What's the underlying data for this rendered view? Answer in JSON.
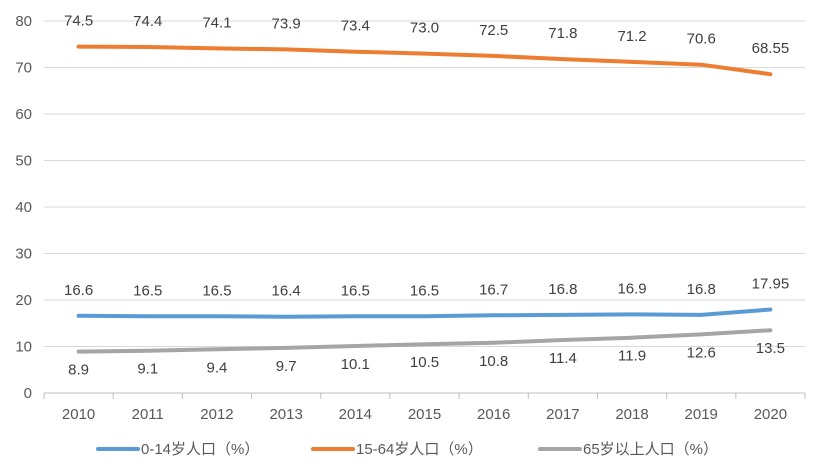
{
  "chart_data": {
    "type": "line",
    "categories": [
      "2010",
      "2011",
      "2012",
      "2013",
      "2014",
      "2015",
      "2016",
      "2017",
      "2018",
      "2019",
      "2020"
    ],
    "ylim": [
      0,
      80
    ],
    "yticks": [
      "0",
      "10",
      "20",
      "30",
      "40",
      "50",
      "60",
      "70",
      "80"
    ],
    "grid": true,
    "legend": "bottom",
    "series": [
      {
        "name": "0-14岁人口（%）",
        "color": "#5B9BD5",
        "values": [
          16.6,
          16.5,
          16.5,
          16.4,
          16.5,
          16.5,
          16.7,
          16.8,
          16.9,
          16.8,
          17.95
        ],
        "labels": [
          "16.6",
          "16.5",
          "16.5",
          "16.4",
          "16.5",
          "16.5",
          "16.7",
          "16.8",
          "16.9",
          "16.8",
          "17.95"
        ]
      },
      {
        "name": "15-64岁人口（%）",
        "color": "#ED7D31",
        "values": [
          74.5,
          74.4,
          74.1,
          73.9,
          73.4,
          73.0,
          72.5,
          71.8,
          71.2,
          70.6,
          68.55
        ],
        "labels": [
          "74.5",
          "74.4",
          "74.1",
          "73.9",
          "73.4",
          "73.0",
          "72.5",
          "71.8",
          "71.2",
          "70.6",
          "68.55"
        ]
      },
      {
        "name": "65岁以上人口（%）",
        "color": "#A5A5A5",
        "values": [
          8.9,
          9.1,
          9.4,
          9.7,
          10.1,
          10.5,
          10.8,
          11.4,
          11.9,
          12.6,
          13.5
        ],
        "labels": [
          "8.9",
          "9.1",
          "9.4",
          "9.7",
          "10.1",
          "10.5",
          "10.8",
          "11.4",
          "11.9",
          "12.6",
          "13.5"
        ]
      }
    ]
  }
}
